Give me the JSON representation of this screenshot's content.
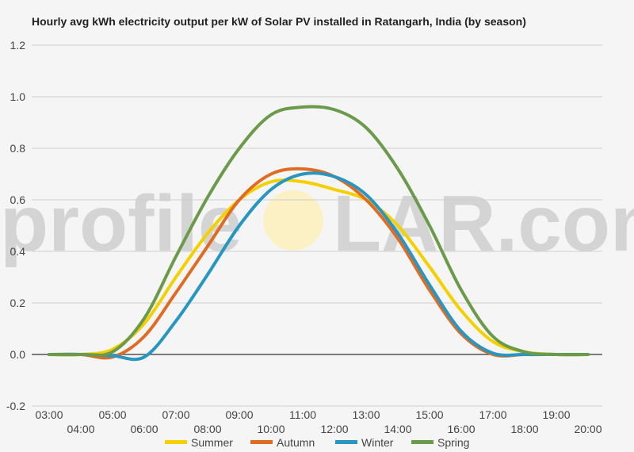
{
  "watermark": {
    "prefix": "profile",
    "suffix": "LAR.com",
    "sun_color": "#fbf1c4"
  },
  "chart_data": {
    "type": "line",
    "title": "Hourly avg kWh electricity output per kW of Solar PV installed in Ratangarh, India (by season)",
    "xlabel": "",
    "ylabel": "",
    "x": [
      "03:00",
      "04:00",
      "05:00",
      "06:00",
      "07:00",
      "08:00",
      "09:00",
      "10:00",
      "11:00",
      "12:00",
      "13:00",
      "14:00",
      "15:00",
      "16:00",
      "17:00",
      "18:00",
      "19:00",
      "20:00"
    ],
    "ylim": [
      -0.2,
      1.2
    ],
    "yticks": [
      -0.2,
      0.0,
      0.2,
      0.4,
      0.6,
      0.8,
      1.0,
      1.2
    ],
    "ytick_labels": [
      "-0.2",
      "0.0",
      "0.2",
      "0.4",
      "0.6",
      "0.8",
      "1.0",
      "1.2"
    ],
    "grid": true,
    "legend": "bottom",
    "series": [
      {
        "name": "Summer",
        "color": "#f5d000",
        "values": [
          0.0,
          0.0,
          0.02,
          0.12,
          0.3,
          0.47,
          0.6,
          0.67,
          0.67,
          0.64,
          0.6,
          0.5,
          0.34,
          0.17,
          0.05,
          0.01,
          0.0,
          0.0
        ]
      },
      {
        "name": "Autumn",
        "color": "#e06c24",
        "values": [
          0.0,
          0.0,
          -0.01,
          0.07,
          0.24,
          0.42,
          0.6,
          0.7,
          0.72,
          0.69,
          0.6,
          0.45,
          0.25,
          0.08,
          0.0,
          0.0,
          0.0,
          0.0
        ]
      },
      {
        "name": "Winter",
        "color": "#2796c0",
        "values": [
          0.0,
          0.0,
          -0.005,
          -0.01,
          0.13,
          0.31,
          0.5,
          0.64,
          0.7,
          0.69,
          0.62,
          0.47,
          0.27,
          0.09,
          0.005,
          0.0,
          0.0,
          0.0
        ]
      },
      {
        "name": "Spring",
        "color": "#6a9a4a",
        "values": [
          0.0,
          0.0,
          0.01,
          0.14,
          0.38,
          0.61,
          0.8,
          0.93,
          0.96,
          0.95,
          0.88,
          0.72,
          0.5,
          0.25,
          0.07,
          0.01,
          0.0,
          0.0
        ]
      }
    ]
  }
}
